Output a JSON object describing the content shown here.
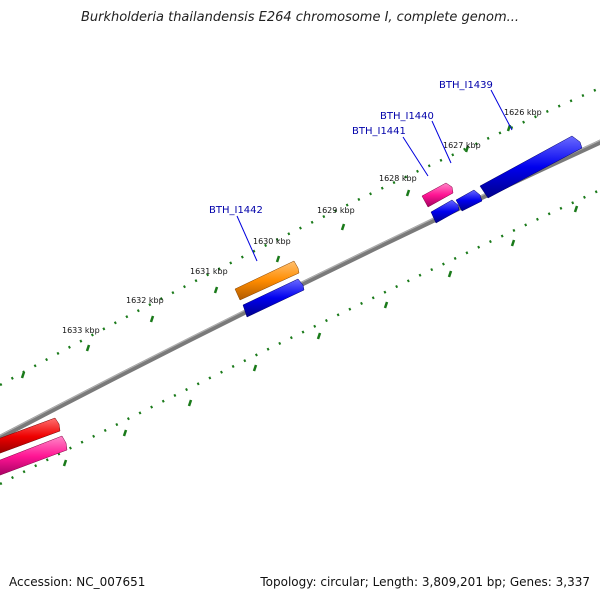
{
  "title": "Burkholderia thailandensis E264 chromosome I, complete genom...",
  "footer": {
    "accession": "Accession: NC_007651",
    "summary": "Topology: circular; Length: 3,809,201 bp; Genes: 3,337"
  },
  "ticks": [
    {
      "label": "1626 kbp"
    },
    {
      "label": "1627 kbp"
    },
    {
      "label": "1628 kbp"
    },
    {
      "label": "1629 kbp"
    },
    {
      "label": "1630 kbp"
    },
    {
      "label": "1631 kbp"
    },
    {
      "label": "1632 kbp"
    },
    {
      "label": "1633 kbp"
    }
  ],
  "gene_labels": [
    {
      "name": "BTH_I1439"
    },
    {
      "name": "BTH_I1440"
    },
    {
      "name": "BTH_I1441"
    },
    {
      "name": "BTH_I1442"
    }
  ],
  "colors": {
    "backbone": "#808080",
    "tick": "#1a7a1a",
    "blue_gene": "#0000ee",
    "orange_gene": "#ff8c00",
    "pink_gene": "#ff1493",
    "red_gene": "#ee0000",
    "label": "#0000aa"
  }
}
